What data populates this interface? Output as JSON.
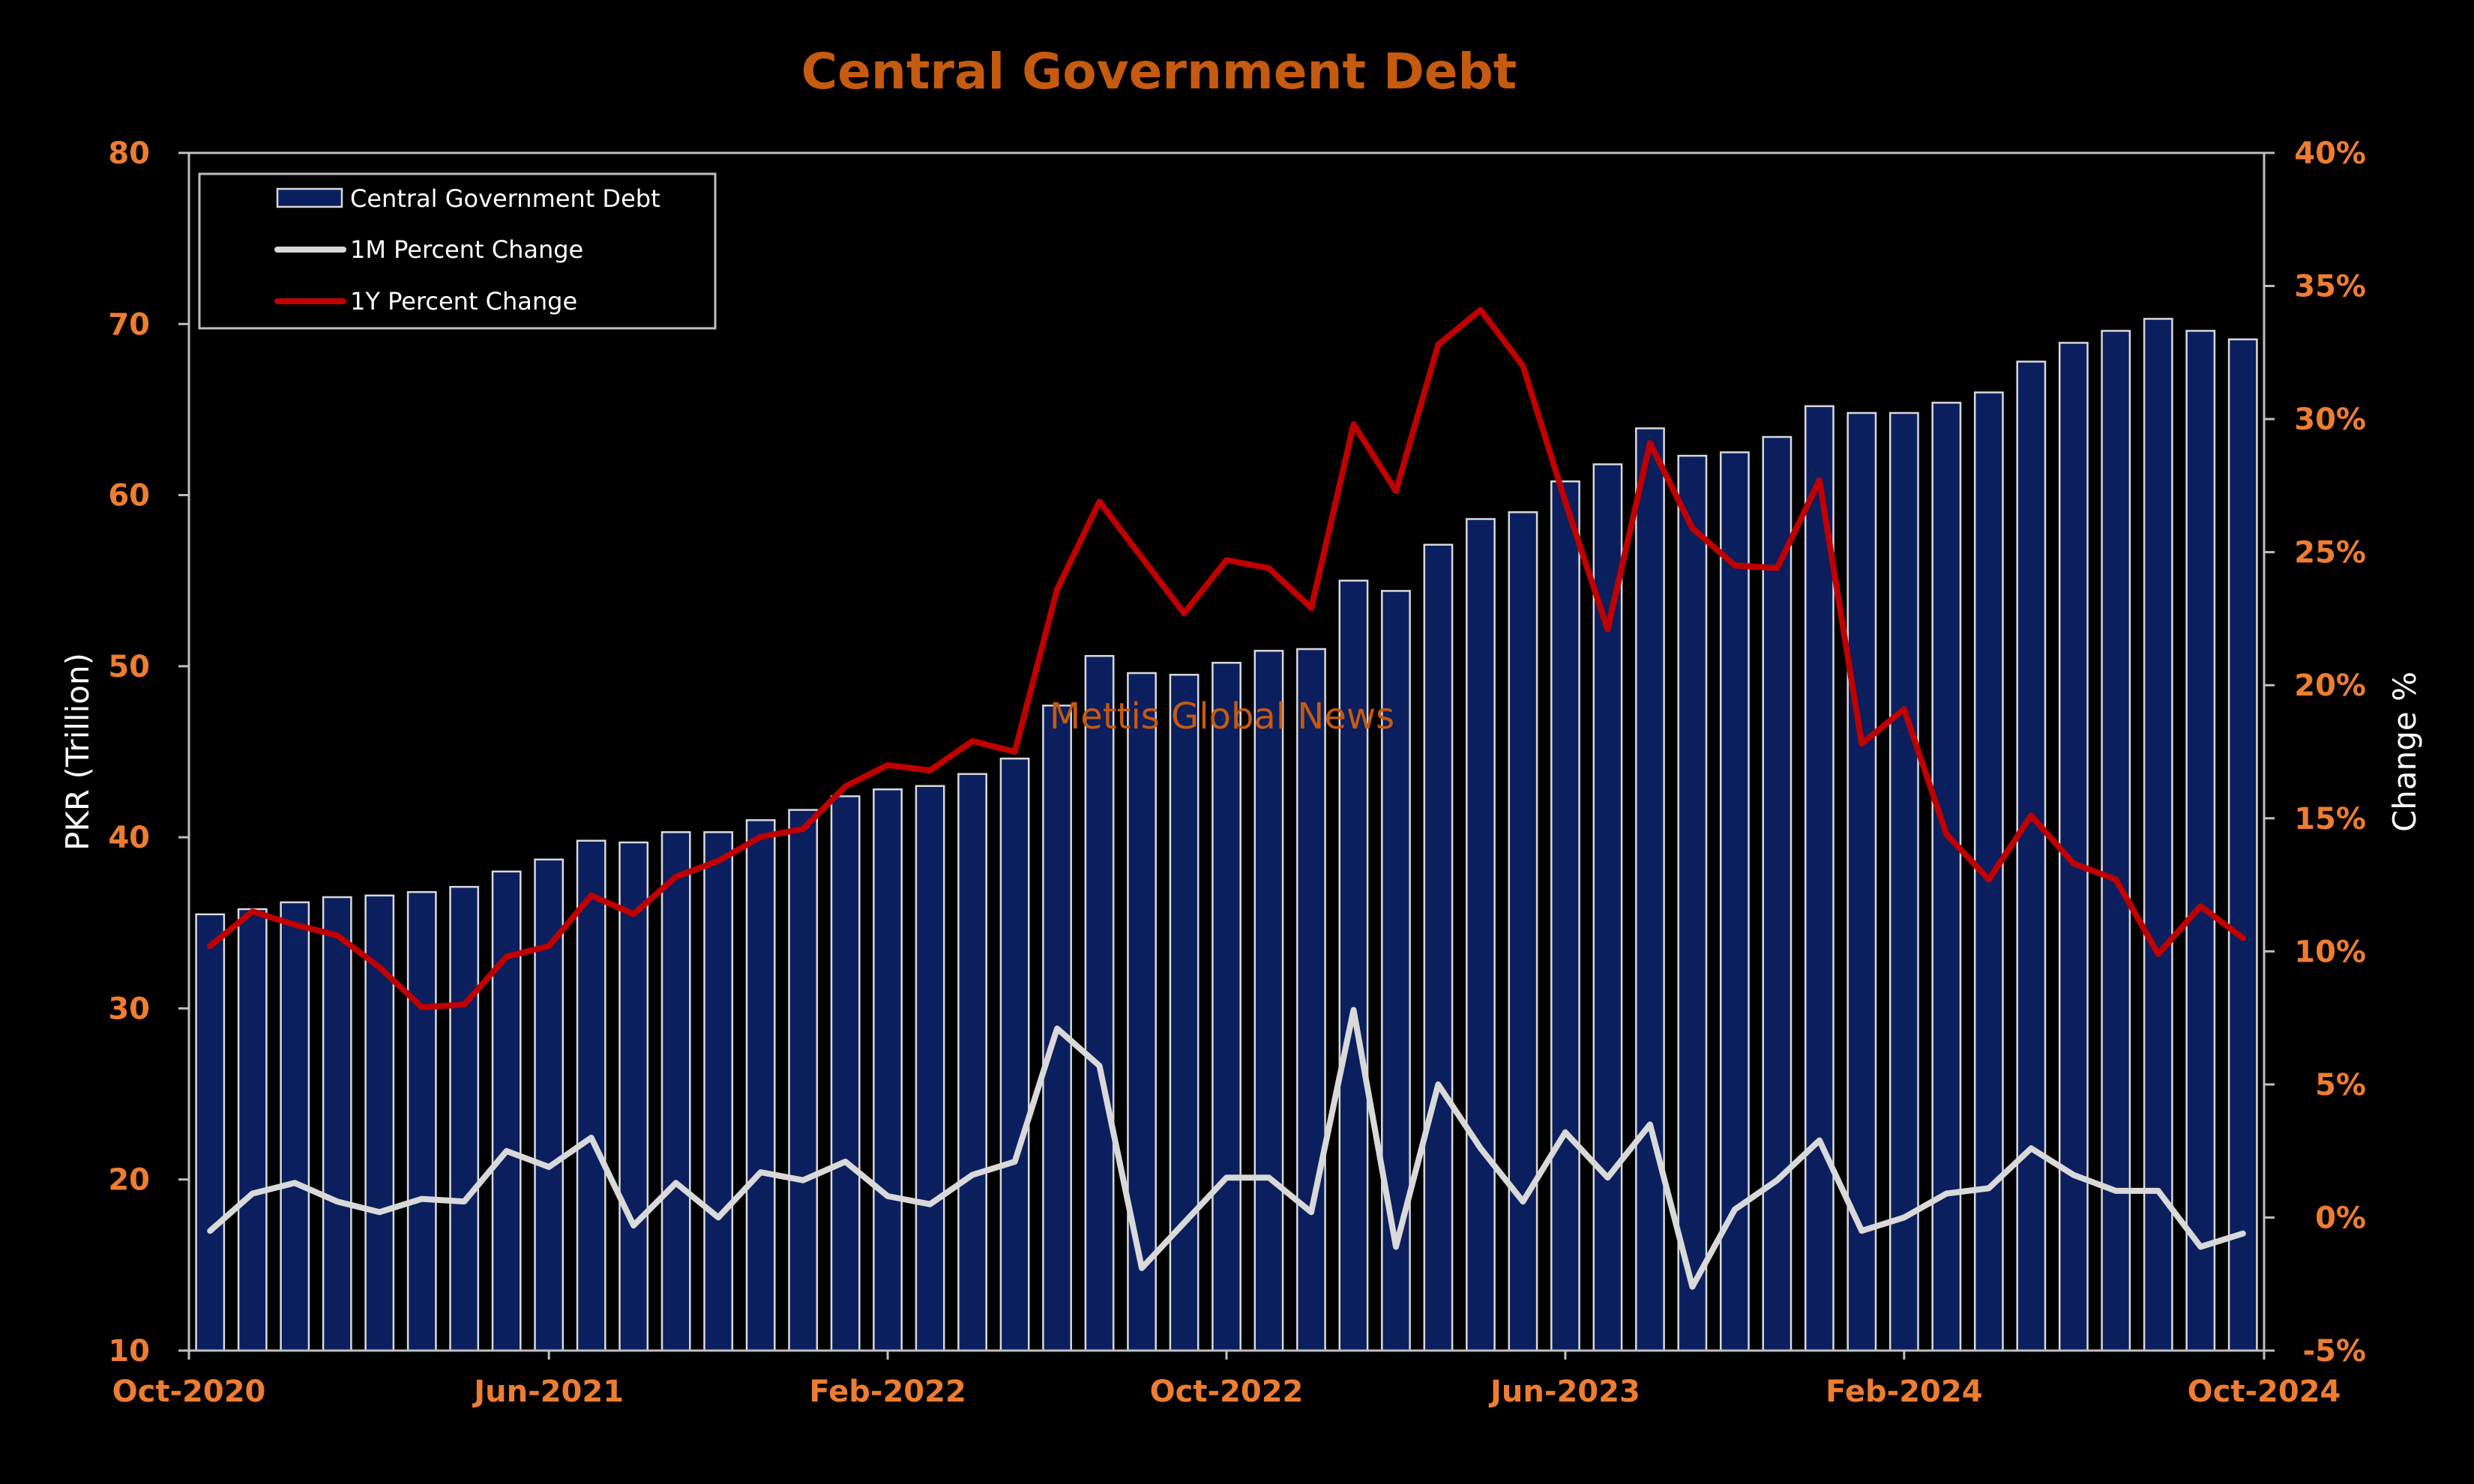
{
  "chart_data": {
    "type": "bar",
    "title": "Central Government Debt",
    "ylabel": "PKR (Trillion)",
    "y2label": "Change %",
    "ylim": [
      10,
      80
    ],
    "y2lim": [
      -5,
      40
    ],
    "yticks": [
      "10",
      "20",
      "30",
      "40",
      "50",
      "60",
      "70",
      "80"
    ],
    "y2ticks": [
      "-5%",
      "0%",
      "5%",
      "10%",
      "15%",
      "20%",
      "25%",
      "30%",
      "35%",
      "40%"
    ],
    "xticks": [
      {
        "label": "Oct-2020",
        "index": 0
      },
      {
        "label": "Jun-2021",
        "index": 8
      },
      {
        "label": "Feb-2022",
        "index": 16
      },
      {
        "label": "Oct-2022",
        "index": 24
      },
      {
        "label": "Jun-2023",
        "index": 32
      },
      {
        "label": "Feb-2024",
        "index": 40
      },
      {
        "label": "Oct-2024",
        "index": 48
      }
    ],
    "categories": [
      "Oct-2020",
      "Nov-2020",
      "Dec-2020",
      "Jan-2021",
      "Feb-2021",
      "Mar-2021",
      "Apr-2021",
      "May-2021",
      "Jun-2021",
      "Jul-2021",
      "Aug-2021",
      "Sep-2021",
      "Oct-2021",
      "Nov-2021",
      "Dec-2021",
      "Jan-2022",
      "Feb-2022",
      "Mar-2022",
      "Apr-2022",
      "May-2022",
      "Jun-2022",
      "Jul-2022",
      "Aug-2022",
      "Sep-2022",
      "Oct-2022",
      "Nov-2022",
      "Dec-2022",
      "Jan-2023",
      "Feb-2023",
      "Mar-2023",
      "Apr-2023",
      "May-2023",
      "Jun-2023",
      "Jul-2023",
      "Aug-2023",
      "Sep-2023",
      "Oct-2023",
      "Nov-2023",
      "Dec-2023",
      "Jan-2024",
      "Feb-2024",
      "Mar-2024",
      "Apr-2024",
      "May-2024",
      "Jun-2024",
      "Jul-2024",
      "Aug-2024",
      "Sep-2024",
      "Oct-2024"
    ],
    "legend_position": "top-left",
    "grid": false,
    "series": [
      {
        "name": "Central Government Debt",
        "type": "bar",
        "axis": "left",
        "color": "#0b1f5e",
        "values": [
          35.5,
          35.8,
          36.2,
          36.5,
          36.6,
          36.8,
          37.1,
          38.0,
          38.7,
          39.8,
          39.7,
          40.3,
          40.3,
          41.0,
          41.6,
          42.4,
          42.8,
          43.0,
          43.7,
          44.6,
          47.7,
          50.6,
          49.6,
          49.5,
          50.2,
          50.9,
          51.0,
          55.0,
          54.4,
          57.1,
          58.6,
          59.0,
          60.8,
          61.8,
          63.9,
          62.3,
          62.5,
          63.4,
          65.2,
          64.8,
          64.8,
          65.4,
          66.0,
          67.8,
          68.9,
          69.6,
          70.3,
          69.6,
          69.1
        ]
      },
      {
        "name": "1M Percent Change",
        "type": "line",
        "axis": "right",
        "color": "#d9d9d9",
        "values": [
          -0.5,
          0.9,
          1.3,
          0.6,
          0.2,
          0.7,
          0.6,
          2.5,
          1.9,
          3.0,
          -0.3,
          1.3,
          0.0,
          1.7,
          1.4,
          2.1,
          0.8,
          0.5,
          1.6,
          2.1,
          7.1,
          5.7,
          -1.9,
          -0.2,
          1.5,
          1.5,
          0.2,
          7.8,
          -1.1,
          5.0,
          2.6,
          0.6,
          3.2,
          1.5,
          3.5,
          -2.6,
          0.3,
          1.4,
          2.9,
          -0.5,
          0.0,
          0.9,
          1.1,
          2.6,
          1.6,
          1.0,
          1.0,
          -1.1,
          -0.6
        ]
      },
      {
        "name": "1Y Percent Change",
        "type": "line",
        "axis": "right",
        "color": "#c00000",
        "values": [
          10.2,
          11.5,
          11.0,
          10.6,
          9.4,
          7.9,
          8.0,
          9.8,
          10.2,
          12.1,
          11.4,
          12.8,
          13.4,
          14.3,
          14.6,
          16.2,
          17.0,
          16.8,
          17.9,
          17.5,
          23.6,
          26.9,
          24.8,
          22.7,
          24.7,
          24.4,
          22.9,
          29.8,
          27.3,
          32.8,
          34.1,
          32.0,
          26.9,
          22.1,
          29.1,
          25.9,
          24.5,
          24.4,
          27.7,
          17.8,
          19.1,
          14.4,
          12.7,
          15.1,
          13.3,
          12.7,
          9.9,
          11.7,
          10.5
        ]
      }
    ],
    "annotations": [
      "Mettis Global News"
    ]
  },
  "colors": {
    "background": "#000000",
    "title": "#c55a11",
    "tick_label": "#ed7d31",
    "axis_title": "#ffffff",
    "axis_line": "#bfbfbf",
    "bar_fill": "#0b1f5e",
    "bar_stroke": "#d9d9d9",
    "watermark": "#c55a11"
  }
}
